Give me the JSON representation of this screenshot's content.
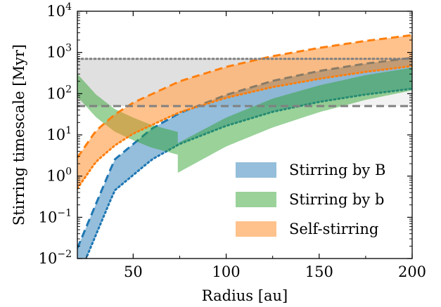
{
  "chart_data": {
    "type": "area",
    "xlabel": "Radius [au]",
    "ylabel": "Stirring timescale [Myr]",
    "xlim": [
      20,
      200
    ],
    "ylim_log10": [
      -2,
      4
    ],
    "yscale": "log",
    "x_ticks": [
      50,
      100,
      150,
      200
    ],
    "y_ticks": [
      {
        "exp": -2,
        "label": "10",
        "sup": "−2"
      },
      {
        "exp": -1,
        "label": "10",
        "sup": "−1"
      },
      {
        "exp": 0,
        "label": "10",
        "sup": "0"
      },
      {
        "exp": 1,
        "label": "10",
        "sup": "1"
      },
      {
        "exp": 2,
        "label": "10",
        "sup": "2"
      },
      {
        "exp": 3,
        "label": "10",
        "sup": "3"
      },
      {
        "exp": 4,
        "label": "10",
        "sup": "4"
      }
    ],
    "grid": false,
    "legend_position": "lower-right",
    "colors": {
      "stirring_B": "#1f77b4",
      "stirring_b": "#2ca02c",
      "self": "#ff7f0e",
      "age": "#808080"
    },
    "age_band": {
      "lower": 50,
      "upper": 700
    },
    "series": [
      {
        "name": "Stirring by B",
        "key": "stirring_B",
        "x_start": 20,
        "x_end": 200,
        "lower_exp": [
          [
            20,
            -2.5
          ],
          [
            40,
            -0.35
          ],
          [
            60,
            0.4
          ],
          [
            75,
            0.78
          ],
          [
            100,
            1.22
          ],
          [
            125,
            1.56
          ],
          [
            150,
            1.8
          ],
          [
            175,
            1.98
          ],
          [
            200,
            2.12
          ]
        ],
        "upper_exp": [
          [
            20,
            -1.75
          ],
          [
            40,
            0.4
          ],
          [
            60,
            1.15
          ],
          [
            75,
            1.53
          ],
          [
            100,
            1.97
          ],
          [
            125,
            2.31
          ],
          [
            150,
            2.55
          ],
          [
            175,
            2.73
          ],
          [
            200,
            2.87
          ]
        ]
      },
      {
        "name": "Stirring by b",
        "key": "stirring_b",
        "segments": [
          {
            "lower_exp": [
              [
                20,
                1.93
              ],
              [
                30,
                1.43
              ],
              [
                40,
                1.08
              ],
              [
                50,
                0.87
              ],
              [
                60,
                0.69
              ],
              [
                74,
                0.52
              ]
            ],
            "upper_exp": [
              [
                20,
                2.48
              ],
              [
                30,
                1.98
              ],
              [
                40,
                1.63
              ],
              [
                50,
                1.42
              ],
              [
                60,
                1.24
              ],
              [
                74,
                1.07
              ]
            ]
          },
          {
            "lower_exp": [
              [
                74,
                0.08
              ],
              [
                100,
                0.72
              ],
              [
                125,
                1.18
              ],
              [
                150,
                1.55
              ],
              [
                175,
                1.85
              ],
              [
                200,
                2.08
              ]
            ],
            "upper_exp": [
              [
                74,
                0.8
              ],
              [
                100,
                1.42
              ],
              [
                125,
                1.88
              ],
              [
                150,
                2.2
              ],
              [
                175,
                2.45
              ],
              [
                200,
                2.63
              ]
            ]
          }
        ]
      },
      {
        "name": "Self-stirring",
        "key": "self",
        "lower_exp": [
          [
            20,
            -0.3
          ],
          [
            30,
            0.35
          ],
          [
            40,
            0.74
          ],
          [
            50,
            1.03
          ],
          [
            75,
            1.55
          ],
          [
            100,
            1.9
          ],
          [
            125,
            2.16
          ],
          [
            150,
            2.36
          ],
          [
            175,
            2.53
          ],
          [
            200,
            2.67
          ]
        ],
        "upper_exp": [
          [
            20,
            0.45
          ],
          [
            30,
            1.1
          ],
          [
            40,
            1.49
          ],
          [
            50,
            1.78
          ],
          [
            75,
            2.3
          ],
          [
            100,
            2.65
          ],
          [
            125,
            2.91
          ],
          [
            150,
            3.11
          ],
          [
            175,
            3.28
          ],
          [
            200,
            3.42
          ]
        ]
      }
    ]
  }
}
